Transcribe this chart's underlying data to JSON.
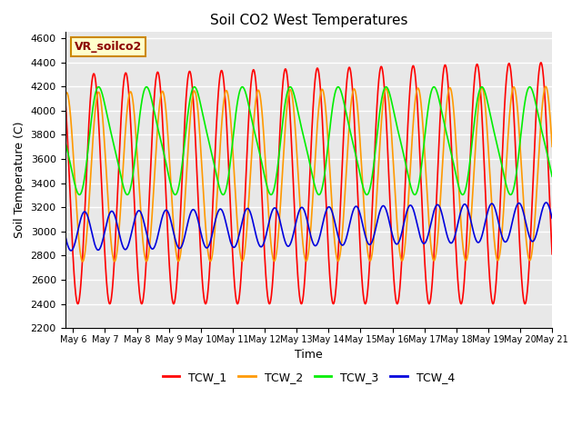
{
  "title": "Soil CO2 West Temperatures",
  "xlabel": "Time",
  "ylabel": "Soil Temperature (C)",
  "ylim": [
    2200,
    4650
  ],
  "yticks": [
    2200,
    2400,
    2600,
    2800,
    3000,
    3200,
    3400,
    3600,
    3800,
    4000,
    4200,
    4400,
    4600
  ],
  "annotation": "VR_soilco2",
  "annotation_box_facecolor": "#ffffcc",
  "annotation_box_edgecolor": "#cc8800",
  "colors": {
    "TCW_1": "#ff0000",
    "TCW_2": "#ff9900",
    "TCW_3": "#00ee00",
    "TCW_4": "#0000dd"
  },
  "bg_color": "#e8e8e8",
  "grid_color": "#ffffff",
  "start_day": 5.75,
  "end_day": 21.0,
  "x_tick_labels": [
    "May 6",
    "May 7",
    "May 8",
    "May 9",
    "May 10",
    "May 11",
    "May 12",
    "May 13",
    "May 14",
    "May 15",
    "May 16",
    "May 17",
    "May 18",
    "May 19",
    "May 20",
    "May 21"
  ],
  "x_tick_positions": [
    6,
    7,
    8,
    9,
    10,
    11,
    12,
    13,
    14,
    15,
    16,
    17,
    18,
    19,
    20,
    21
  ]
}
